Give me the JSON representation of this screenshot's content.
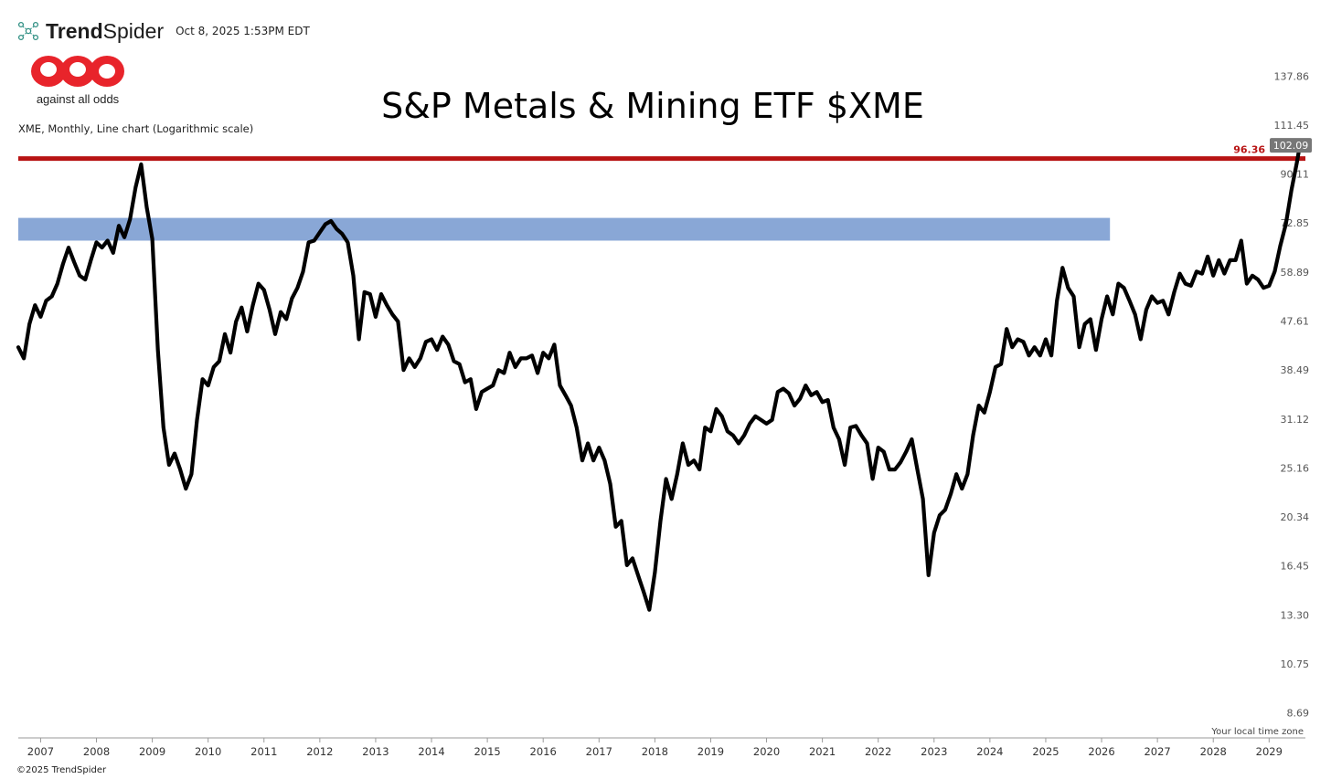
{
  "header": {
    "brand_prefix": "Trend",
    "brand_suffix": "Spider",
    "timestamp": "Oct 8, 2025 1:53PM EDT"
  },
  "logo": {
    "caption": "against all odds",
    "color": "#e8242b"
  },
  "chart_title": "S&P Metals & Mining ETF $XME",
  "chart_subtitle": "XME, Monthly, Line chart (Logarithmic scale)",
  "footer": {
    "copyright": "©2025 TrendSpider",
    "timezone_note": "Your local time zone"
  },
  "colors": {
    "price_line": "#000000",
    "resistance_line": "#b81414",
    "zone_fill": "#7f9fd3",
    "last_price_badge": "#777777"
  },
  "chart_data": {
    "type": "line",
    "scale": "log",
    "ylim": [
      7.8,
      150
    ],
    "xlim": [
      2006.6,
      2029.65
    ],
    "y_ticks": [
      "137.86",
      "111.45",
      "90.11",
      "72.85",
      "58.89",
      "47.61",
      "38.49",
      "31.12",
      "25.16",
      "20.34",
      "16.45",
      "13.30",
      "10.75",
      "8.69"
    ],
    "x_ticks": [
      "2007",
      "2008",
      "2009",
      "2010",
      "2011",
      "2012",
      "2013",
      "2014",
      "2015",
      "2016",
      "2017",
      "2018",
      "2019",
      "2020",
      "2021",
      "2022",
      "2023",
      "2024",
      "2025",
      "2026",
      "2027",
      "2028",
      "2029"
    ],
    "horizontal_line": {
      "value": 96.36,
      "label": "96.36"
    },
    "zone": {
      "low": 67.5,
      "high": 74.5,
      "x_start": 2006.6,
      "x_end": 2026.15
    },
    "last_price": "102.09",
    "legend": "none",
    "grid": false,
    "series": [
      {
        "values": [
          [
            2006.6,
            42.5
          ],
          [
            2006.7,
            40.5
          ],
          [
            2006.8,
            47.0
          ],
          [
            2006.9,
            51.0
          ],
          [
            2007.0,
            48.5
          ],
          [
            2007.1,
            52.0
          ],
          [
            2007.2,
            53.0
          ],
          [
            2007.3,
            56.0
          ],
          [
            2007.4,
            61.0
          ],
          [
            2007.5,
            65.5
          ],
          [
            2007.6,
            61.5
          ],
          [
            2007.7,
            58.0
          ],
          [
            2007.8,
            57.0
          ],
          [
            2007.9,
            62.0
          ],
          [
            2008.0,
            67.0
          ],
          [
            2008.1,
            65.5
          ],
          [
            2008.2,
            67.5
          ],
          [
            2008.3,
            64.0
          ],
          [
            2008.4,
            72.0
          ],
          [
            2008.5,
            68.5
          ],
          [
            2008.6,
            74.0
          ],
          [
            2008.7,
            85.0
          ],
          [
            2008.8,
            94.0
          ],
          [
            2008.9,
            78.0
          ],
          [
            2009.0,
            68.0
          ],
          [
            2009.1,
            42.0
          ],
          [
            2009.2,
            30.0
          ],
          [
            2009.3,
            25.5
          ],
          [
            2009.4,
            26.8
          ],
          [
            2009.5,
            25.0
          ],
          [
            2009.6,
            23.0
          ],
          [
            2009.7,
            24.5
          ],
          [
            2009.8,
            31.0
          ],
          [
            2009.9,
            37.0
          ],
          [
            2010.0,
            36.0
          ],
          [
            2010.1,
            39.0
          ],
          [
            2010.2,
            40.0
          ],
          [
            2010.3,
            45.0
          ],
          [
            2010.4,
            41.5
          ],
          [
            2010.5,
            47.5
          ],
          [
            2010.6,
            50.5
          ],
          [
            2010.7,
            45.5
          ],
          [
            2010.8,
            51.0
          ],
          [
            2010.9,
            56.0
          ],
          [
            2011.0,
            54.5
          ],
          [
            2011.1,
            50.0
          ],
          [
            2011.2,
            45.0
          ],
          [
            2011.3,
            49.5
          ],
          [
            2011.4,
            48.0
          ],
          [
            2011.5,
            52.5
          ],
          [
            2011.6,
            55.0
          ],
          [
            2011.7,
            59.0
          ],
          [
            2011.8,
            67.0
          ],
          [
            2011.9,
            67.5
          ],
          [
            2012.0,
            70.0
          ],
          [
            2012.1,
            72.5
          ],
          [
            2012.2,
            73.5
          ],
          [
            2012.3,
            71.0
          ],
          [
            2012.4,
            69.5
          ],
          [
            2012.5,
            67.0
          ],
          [
            2012.6,
            58.0
          ],
          [
            2012.7,
            44.0
          ],
          [
            2012.8,
            54.0
          ],
          [
            2012.9,
            53.5
          ],
          [
            2013.0,
            48.5
          ],
          [
            2013.1,
            53.5
          ],
          [
            2013.2,
            51.0
          ],
          [
            2013.3,
            49.0
          ],
          [
            2013.4,
            47.5
          ],
          [
            2013.5,
            38.5
          ],
          [
            2013.6,
            40.5
          ],
          [
            2013.7,
            39.0
          ],
          [
            2013.8,
            40.5
          ],
          [
            2013.9,
            43.5
          ],
          [
            2014.0,
            44.0
          ],
          [
            2014.1,
            42.0
          ],
          [
            2014.2,
            44.5
          ],
          [
            2014.3,
            43.0
          ],
          [
            2014.4,
            40.0
          ],
          [
            2014.5,
            39.5
          ],
          [
            2014.6,
            36.5
          ],
          [
            2014.7,
            37.0
          ],
          [
            2014.8,
            32.5
          ],
          [
            2014.9,
            35.0
          ],
          [
            2015.0,
            35.5
          ],
          [
            2015.1,
            36.0
          ],
          [
            2015.2,
            38.5
          ],
          [
            2015.3,
            38.0
          ],
          [
            2015.4,
            41.5
          ],
          [
            2015.5,
            39.0
          ],
          [
            2015.6,
            40.5
          ],
          [
            2015.7,
            40.5
          ],
          [
            2015.8,
            41.0
          ],
          [
            2015.9,
            38.0
          ],
          [
            2016.0,
            41.5
          ],
          [
            2016.1,
            40.5
          ],
          [
            2016.2,
            43.0
          ],
          [
            2016.3,
            36.0
          ],
          [
            2016.4,
            34.5
          ],
          [
            2016.5,
            33.0
          ],
          [
            2016.6,
            30.0
          ],
          [
            2016.7,
            26.0
          ],
          [
            2016.8,
            28.0
          ],
          [
            2016.9,
            26.0
          ],
          [
            2017.0,
            27.5
          ],
          [
            2017.1,
            26.0
          ],
          [
            2017.2,
            23.5
          ],
          [
            2017.3,
            19.5
          ],
          [
            2017.4,
            20.0
          ],
          [
            2017.5,
            16.5
          ],
          [
            2017.6,
            17.0
          ],
          [
            2017.7,
            15.8
          ],
          [
            2017.8,
            14.7
          ],
          [
            2017.9,
            13.6
          ],
          [
            2018.0,
            16.0
          ],
          [
            2018.1,
            20.0
          ],
          [
            2018.2,
            24.0
          ],
          [
            2018.3,
            22.0
          ],
          [
            2018.4,
            24.5
          ],
          [
            2018.5,
            28.0
          ],
          [
            2018.6,
            25.5
          ],
          [
            2018.7,
            26.0
          ],
          [
            2018.8,
            25.0
          ],
          [
            2018.9,
            30.0
          ],
          [
            2019.0,
            29.5
          ],
          [
            2019.1,
            32.5
          ],
          [
            2019.2,
            31.5
          ],
          [
            2019.3,
            29.5
          ],
          [
            2019.4,
            29.0
          ],
          [
            2019.5,
            28.0
          ],
          [
            2019.6,
            29.0
          ],
          [
            2019.7,
            30.5
          ],
          [
            2019.8,
            31.5
          ],
          [
            2019.9,
            31.0
          ],
          [
            2020.0,
            30.5
          ],
          [
            2020.1,
            31.0
          ],
          [
            2020.2,
            35.0
          ],
          [
            2020.3,
            35.5
          ],
          [
            2020.4,
            34.8
          ],
          [
            2020.5,
            33.0
          ],
          [
            2020.6,
            34.0
          ],
          [
            2020.7,
            36.0
          ],
          [
            2020.8,
            34.5
          ],
          [
            2020.9,
            35.0
          ],
          [
            2021.0,
            33.5
          ],
          [
            2021.1,
            33.8
          ],
          [
            2021.2,
            30.0
          ],
          [
            2021.3,
            28.5
          ],
          [
            2021.4,
            25.5
          ],
          [
            2021.5,
            30.0
          ],
          [
            2021.6,
            30.2
          ],
          [
            2021.7,
            29.0
          ],
          [
            2021.8,
            28.0
          ],
          [
            2021.9,
            24.0
          ],
          [
            2022.0,
            27.5
          ],
          [
            2022.1,
            27.0
          ],
          [
            2022.2,
            25.0
          ],
          [
            2022.3,
            25.0
          ],
          [
            2022.4,
            25.8
          ],
          [
            2022.5,
            27.0
          ],
          [
            2022.6,
            28.5
          ],
          [
            2022.7,
            25.0
          ],
          [
            2022.8,
            22.0
          ],
          [
            2022.9,
            15.8
          ],
          [
            2023.0,
            19.0
          ],
          [
            2023.1,
            20.5
          ],
          [
            2023.2,
            21.0
          ],
          [
            2023.3,
            22.5
          ],
          [
            2023.4,
            24.5
          ],
          [
            2023.5,
            23.0
          ],
          [
            2023.6,
            24.5
          ],
          [
            2023.7,
            29.0
          ],
          [
            2023.8,
            33.0
          ],
          [
            2023.9,
            32.0
          ],
          [
            2024.0,
            35.0
          ],
          [
            2024.1,
            39.0
          ],
          [
            2024.2,
            39.5
          ],
          [
            2024.3,
            46.0
          ],
          [
            2024.4,
            42.5
          ],
          [
            2024.5,
            44.0
          ],
          [
            2024.6,
            43.5
          ],
          [
            2024.7,
            41.0
          ],
          [
            2024.8,
            42.5
          ],
          [
            2024.9,
            41.0
          ],
          [
            2025.0,
            44.0
          ],
          [
            2025.1,
            41.0
          ],
          [
            2025.2,
            52.0
          ],
          [
            2025.3,
            60.0
          ],
          [
            2025.4,
            55.0
          ],
          [
            2025.5,
            53.0
          ],
          [
            2025.6,
            42.5
          ],
          [
            2025.7,
            47.0
          ],
          [
            2025.8,
            48.0
          ],
          [
            2025.9,
            42.0
          ],
          [
            2026.0,
            48.0
          ],
          [
            2026.1,
            53.0
          ],
          [
            2026.2,
            49.0
          ],
          [
            2026.3,
            56.0
          ],
          [
            2026.4,
            55.0
          ],
          [
            2026.5,
            52.0
          ],
          [
            2026.6,
            49.0
          ],
          [
            2026.7,
            44.0
          ],
          [
            2026.8,
            50.0
          ],
          [
            2026.9,
            53.0
          ],
          [
            2027.0,
            51.5
          ],
          [
            2027.1,
            52.0
          ],
          [
            2027.2,
            49.0
          ],
          [
            2027.3,
            54.0
          ],
          [
            2027.4,
            58.5
          ],
          [
            2027.5,
            56.0
          ],
          [
            2027.6,
            55.5
          ],
          [
            2027.7,
            59.0
          ],
          [
            2027.8,
            58.5
          ],
          [
            2027.9,
            63.0
          ],
          [
            2028.0,
            58.0
          ],
          [
            2028.1,
            62.0
          ],
          [
            2028.2,
            58.5
          ],
          [
            2028.3,
            62.0
          ],
          [
            2028.4,
            62.0
          ],
          [
            2028.5,
            67.5
          ],
          [
            2028.6,
            56.0
          ],
          [
            2028.7,
            58.0
          ],
          [
            2028.8,
            57.0
          ],
          [
            2028.9,
            55.0
          ],
          [
            2029.0,
            55.5
          ],
          [
            2029.1,
            59.0
          ],
          [
            2029.2,
            66.0
          ],
          [
            2029.3,
            72.5
          ],
          [
            2029.4,
            84.0
          ],
          [
            2029.5,
            95.0
          ],
          [
            2029.55,
            102.09
          ]
        ]
      }
    ]
  }
}
